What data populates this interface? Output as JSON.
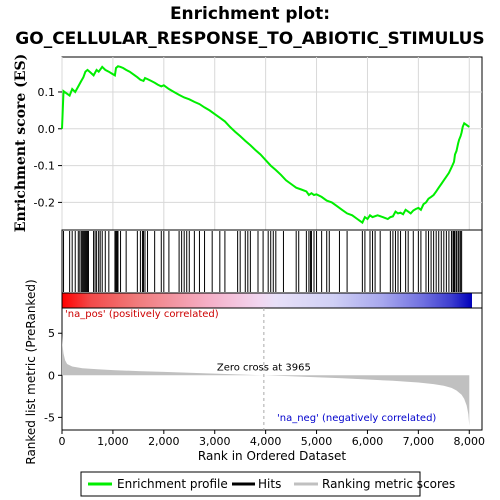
{
  "title_line1": "Enrichment plot:",
  "title_line2": "GO_CELLULAR_RESPONSE_TO_ABIOTIC_STIMULUS",
  "colors": {
    "profile": "#00ee00",
    "hits": "#000000",
    "metric": "#c0c0c0",
    "pos_label": "#cc0000",
    "neg_label": "#0000cc"
  },
  "labels": {
    "na_pos": "'na_pos' (positively correlated)",
    "na_neg": "'na_neg' (negatively correlated)",
    "zero_cross": "Zero cross at 3965",
    "ylabel_top": "Enrichment score (ES)",
    "ylabel_bottom": "Ranked list metric (PreRanked)",
    "xlabel": "Rank in Ordered Dataset"
  },
  "legend": {
    "items": [
      "Enrichment profile",
      "Hits",
      "Ranking metric scores"
    ]
  },
  "chart_data": [
    {
      "type": "line",
      "name": "enrichment-profile",
      "xlabel": "",
      "ylabel": "Enrichment score (ES)",
      "xlim": [
        0,
        8250
      ],
      "ylim": [
        -0.275,
        0.195
      ],
      "yticks": [
        -0.2,
        -0.1,
        0.0,
        0.1
      ],
      "ytick_labels": [
        "-0.2",
        "-0.1",
        "0.0",
        "0.1"
      ],
      "grid": true,
      "x": [
        0,
        30,
        150,
        200,
        260,
        320,
        380,
        420,
        460,
        500,
        560,
        620,
        680,
        720,
        790,
        850,
        920,
        980,
        1040,
        1060,
        1100,
        1150,
        1200,
        1260,
        1330,
        1400,
        1480,
        1540,
        1600,
        1630,
        1680,
        1750,
        1820,
        1880,
        1950,
        2000,
        2100,
        2200,
        2300,
        2400,
        2500,
        2600,
        2700,
        2800,
        2900,
        3000,
        3100,
        3200,
        3300,
        3400,
        3500,
        3600,
        3700,
        3800,
        3900,
        4000,
        4100,
        4200,
        4300,
        4400,
        4500,
        4600,
        4700,
        4800,
        4850,
        4900,
        4950,
        5000,
        5100,
        5200,
        5300,
        5400,
        5500,
        5600,
        5700,
        5800,
        5850,
        5900,
        5950,
        6000,
        6050,
        6100,
        6200,
        6300,
        6400,
        6450,
        6500,
        6550,
        6600,
        6650,
        6700,
        6750,
        6800,
        6850,
        6900,
        6950,
        7000,
        7050,
        7100,
        7150,
        7200,
        7250,
        7300,
        7350,
        7400,
        7450,
        7500,
        7550,
        7600,
        7650,
        7700,
        7720,
        7750,
        7780,
        7800,
        7830,
        7850,
        7870,
        7900,
        7950,
        8000
      ],
      "y": [
        0.0,
        0.102,
        0.09,
        0.108,
        0.1,
        0.115,
        0.13,
        0.14,
        0.155,
        0.16,
        0.153,
        0.145,
        0.16,
        0.155,
        0.168,
        0.16,
        0.155,
        0.15,
        0.145,
        0.165,
        0.17,
        0.168,
        0.165,
        0.16,
        0.155,
        0.148,
        0.14,
        0.133,
        0.13,
        0.138,
        0.135,
        0.13,
        0.125,
        0.12,
        0.115,
        0.118,
        0.108,
        0.1,
        0.092,
        0.085,
        0.08,
        0.073,
        0.067,
        0.058,
        0.05,
        0.04,
        0.03,
        0.02,
        0.005,
        -0.008,
        -0.02,
        -0.033,
        -0.045,
        -0.058,
        -0.07,
        -0.085,
        -0.1,
        -0.112,
        -0.125,
        -0.14,
        -0.15,
        -0.16,
        -0.165,
        -0.17,
        -0.18,
        -0.175,
        -0.18,
        -0.178,
        -0.185,
        -0.195,
        -0.2,
        -0.21,
        -0.22,
        -0.23,
        -0.235,
        -0.245,
        -0.25,
        -0.255,
        -0.24,
        -0.245,
        -0.235,
        -0.24,
        -0.235,
        -0.24,
        -0.245,
        -0.24,
        -0.238,
        -0.225,
        -0.23,
        -0.228,
        -0.232,
        -0.22,
        -0.225,
        -0.23,
        -0.222,
        -0.218,
        -0.215,
        -0.22,
        -0.205,
        -0.2,
        -0.19,
        -0.185,
        -0.18,
        -0.17,
        -0.16,
        -0.15,
        -0.14,
        -0.13,
        -0.12,
        -0.105,
        -0.09,
        -0.07,
        -0.06,
        -0.04,
        -0.03,
        -0.02,
        -0.01,
        0.005,
        0.015,
        0.01,
        0.005
      ]
    },
    {
      "type": "scatter",
      "name": "hits",
      "xlim": [
        0,
        8250
      ],
      "x": [
        30,
        150,
        200,
        260,
        320,
        350,
        380,
        400,
        420,
        440,
        460,
        480,
        500,
        520,
        620,
        650,
        680,
        720,
        750,
        790,
        850,
        920,
        1040,
        1060,
        1080,
        1100,
        1150,
        1260,
        1480,
        1540,
        1580,
        1600,
        1630,
        1680,
        1820,
        1950,
        2000,
        2100,
        2300,
        2350,
        2400,
        2450,
        2500,
        2600,
        2700,
        2800,
        2950,
        3100,
        3200,
        3450,
        3500,
        3600,
        3650,
        3700,
        3850,
        3950,
        4050,
        4100,
        4150,
        4200,
        4350,
        4600,
        4650,
        4800,
        4850,
        4880,
        4900,
        4950,
        5000,
        5100,
        5200,
        5250,
        5450,
        5600,
        5900,
        5950,
        6050,
        6100,
        6150,
        6250,
        6450,
        6500,
        6550,
        6600,
        6650,
        6750,
        6800,
        6900,
        7000,
        7050,
        7150,
        7200,
        7250,
        7300,
        7350,
        7400,
        7450,
        7500,
        7550,
        7600,
        7650,
        7680,
        7700,
        7720,
        7750,
        7780,
        7800,
        7830,
        7850
      ]
    },
    {
      "type": "area",
      "name": "ranking-metric",
      "xlabel": "Rank in Ordered Dataset",
      "ylabel": "Ranked list metric (PreRanked)",
      "xlim": [
        0,
        8250
      ],
      "ylim": [
        -6.5,
        8
      ],
      "yticks": [
        -5,
        0,
        5
      ],
      "ytick_labels": [
        "-5",
        "0",
        "5"
      ],
      "xticks": [
        0,
        1000,
        2000,
        3000,
        4000,
        5000,
        6000,
        7000,
        8000
      ],
      "xtick_labels": [
        "0",
        "1,000",
        "2,000",
        "3,000",
        "4,000",
        "5,000",
        "6,000",
        "7,000",
        "8,000"
      ],
      "zero_cross": 3965,
      "x": [
        0,
        10,
        30,
        60,
        100,
        200,
        400,
        700,
        1000,
        1500,
        2000,
        2500,
        3000,
        3500,
        3965,
        4500,
        5000,
        5500,
        6000,
        6500,
        7000,
        7300,
        7500,
        7650,
        7750,
        7850,
        7900,
        7950,
        7980,
        8000
      ],
      "y": [
        4.8,
        3.6,
        2.6,
        1.8,
        1.35,
        1.05,
        0.85,
        0.72,
        0.62,
        0.5,
        0.4,
        0.3,
        0.2,
        0.1,
        0.0,
        -0.12,
        -0.22,
        -0.35,
        -0.5,
        -0.65,
        -0.85,
        -1.05,
        -1.25,
        -1.5,
        -1.8,
        -2.3,
        -2.8,
        -3.6,
        -4.6,
        -6.0
      ]
    }
  ]
}
